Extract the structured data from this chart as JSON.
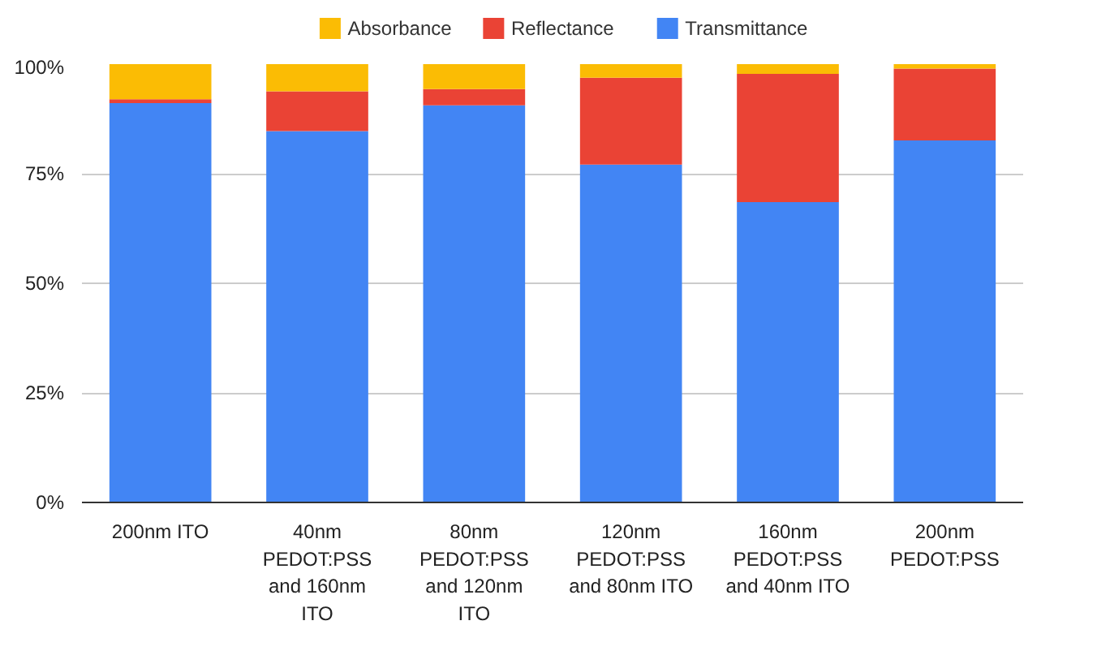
{
  "chart_data": {
    "type": "bar",
    "stacked": true,
    "categories": [
      "200nm ITO",
      "40nm PEDOT:PSS and 160nm ITO",
      "80nm PEDOT:PSS and 120nm ITO",
      "120nm PEDOT:PSS and 80nm ITO",
      "160nm PEDOT:PSS and 40nm ITO",
      "200nm PEDOT:PSS"
    ],
    "series": [
      {
        "name": "Transmittance",
        "color": "#4285f4",
        "values": [
          91.1,
          84.7,
          90.6,
          77.1,
          68.5,
          82.6
        ]
      },
      {
        "name": "Reflectance",
        "color": "#ea4335",
        "values": [
          0.9,
          9.1,
          3.7,
          19.8,
          29.3,
          16.4
        ]
      },
      {
        "name": "Absorbance",
        "color": "#fbbc04",
        "values": [
          8.0,
          6.2,
          5.7,
          3.1,
          2.2,
          1.0
        ]
      }
    ],
    "ylim": [
      0,
      100
    ],
    "yticks": [
      {
        "value": 0,
        "label": "0%"
      },
      {
        "value": 25,
        "label": "25%"
      },
      {
        "value": 50,
        "label": "50%"
      },
      {
        "value": 75,
        "label": "75%"
      },
      {
        "value": 100,
        "label": "100%"
      }
    ],
    "grid": "y",
    "legend": "top"
  }
}
